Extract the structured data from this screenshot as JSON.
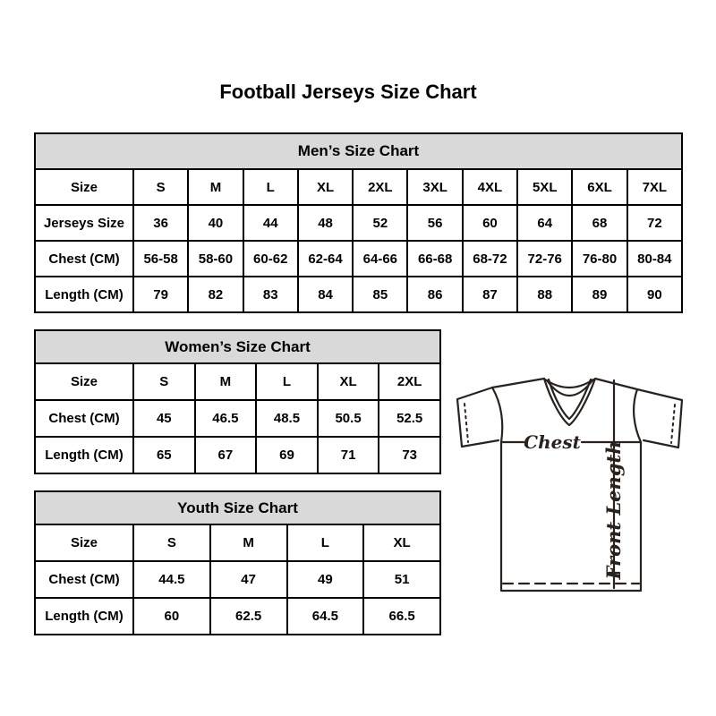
{
  "page": {
    "title": "Football Jerseys Size Chart"
  },
  "tables": [
    {
      "id": "mens",
      "title": "Men’s Size Chart",
      "rows": [
        [
          "Size",
          "S",
          "M",
          "L",
          "XL",
          "2XL",
          "3XL",
          "4XL",
          "5XL",
          "6XL",
          "7XL"
        ],
        [
          "Jerseys Size",
          "36",
          "40",
          "44",
          "48",
          "52",
          "56",
          "60",
          "64",
          "68",
          "72"
        ],
        [
          "Chest (CM)",
          "56-58",
          "58-60",
          "60-62",
          "62-64",
          "64-66",
          "66-68",
          "68-72",
          "72-76",
          "76-80",
          "80-84"
        ],
        [
          "Length (CM)",
          "79",
          "82",
          "83",
          "84",
          "85",
          "86",
          "87",
          "88",
          "89",
          "90"
        ]
      ]
    },
    {
      "id": "womens",
      "title": "Women’s Size Chart",
      "rows": [
        [
          "Size",
          "S",
          "M",
          "L",
          "XL",
          "2XL"
        ],
        [
          "Chest (CM)",
          "45",
          "46.5",
          "48.5",
          "50.5",
          "52.5"
        ],
        [
          "Length (CM)",
          "65",
          "67",
          "69",
          "71",
          "73"
        ]
      ]
    },
    {
      "id": "youth",
      "title": "Youth Size Chart",
      "rows": [
        [
          "Size",
          "S",
          "M",
          "L",
          "XL"
        ],
        [
          "Chest (CM)",
          "44.5",
          "47",
          "49",
          "51"
        ],
        [
          "Length (CM)",
          "60",
          "62.5",
          "64.5",
          "66.5"
        ]
      ]
    }
  ],
  "diagram": {
    "chest_label": "Chest",
    "front_length_label": "Front Length"
  },
  "colors": {
    "header_bg": "#d9d9d9",
    "table_border": "#000000",
    "diagram_stroke": "#29221e",
    "page_bg": "#ffffff"
  }
}
